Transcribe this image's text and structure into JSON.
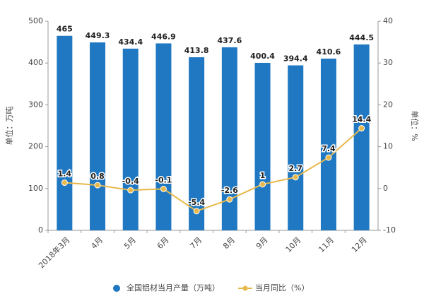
{
  "chart_data": {
    "type": "bar",
    "y_label": "单位：万吨",
    "y2_label": "单位：%",
    "categories": [
      "2018年3月",
      "4月",
      "5月",
      "6月",
      "7月",
      "8月",
      "9月",
      "10月",
      "11月",
      "12月"
    ],
    "series": [
      {
        "name": "全国铝材当月产量（万吨）",
        "type": "bar",
        "color": "#1f78c1",
        "values": [
          465,
          449.3,
          434.4,
          446.9,
          413.8,
          437.6,
          400.4,
          394.4,
          410.6,
          444.5
        ]
      },
      {
        "name": "当月同比（%）",
        "type": "line",
        "axis": "y2",
        "color": "#e8b84a",
        "values": [
          1.4,
          0.8,
          -0.4,
          -0.1,
          -5.4,
          -2.6,
          1,
          2.7,
          7.4,
          14.4
        ]
      }
    ],
    "ylim": [
      0,
      500
    ],
    "yticks": [
      0,
      100,
      200,
      300,
      400,
      500
    ],
    "y2lim": [
      -10,
      40
    ],
    "y2ticks": [
      -10,
      0,
      10,
      20,
      30,
      40
    ],
    "legend": "bottom"
  }
}
